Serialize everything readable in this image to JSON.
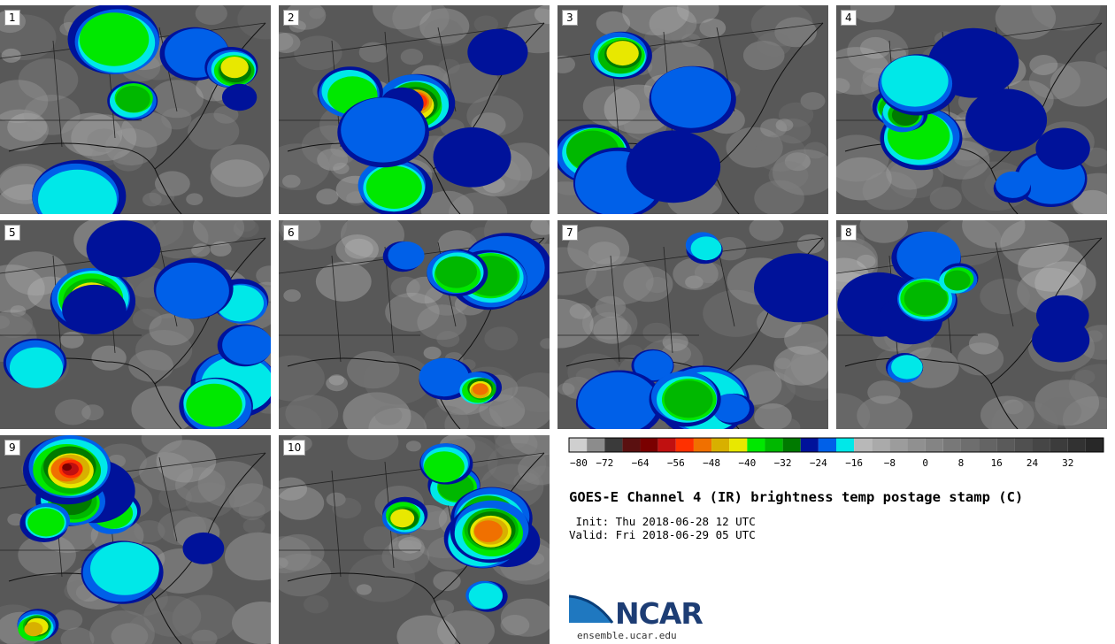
{
  "panels": [
    {
      "label": "1",
      "seed": 11
    },
    {
      "label": "2",
      "seed": 22
    },
    {
      "label": "3",
      "seed": 33
    },
    {
      "label": "4",
      "seed": 44
    },
    {
      "label": "5",
      "seed": 55
    },
    {
      "label": "6",
      "seed": 66
    },
    {
      "label": "7",
      "seed": 77
    },
    {
      "label": "8",
      "seed": 88
    },
    {
      "label": "9",
      "seed": 99
    },
    {
      "label": "10",
      "seed": 110
    }
  ],
  "colorbar": {
    "colors": [
      "#cfcfcf",
      "#8c8c8c",
      "#3a3a3a",
      "#5a1010",
      "#7a0000",
      "#c01010",
      "#ff3000",
      "#f07000",
      "#d8b000",
      "#e8e800",
      "#00e800",
      "#00b800",
      "#007a00",
      "#00129a",
      "#0060e8",
      "#00e8e8",
      "#b8b8b8",
      "#aaaaaa",
      "#9c9c9c",
      "#909090",
      "#848484",
      "#787878",
      "#6e6e6e",
      "#646464",
      "#5a5a5a",
      "#505050",
      "#464646",
      "#3c3c3c",
      "#323232",
      "#282828"
    ],
    "ticks": [
      "−80",
      "−72",
      "−64",
      "−56",
      "−48",
      "−40",
      "−32",
      "−24",
      "−16",
      "−8",
      "0",
      "8",
      "16",
      "24",
      "32"
    ]
  },
  "title": "GOES-E Channel 4 (IR) brightness temp postage stamp (C)",
  "init": " Init: Thu 2018-06-28 12 UTC",
  "valid": "Valid: Fri 2018-06-29 05 UTC",
  "logo": {
    "text": "NCAR",
    "url": "ensemble.ucar.edu"
  }
}
